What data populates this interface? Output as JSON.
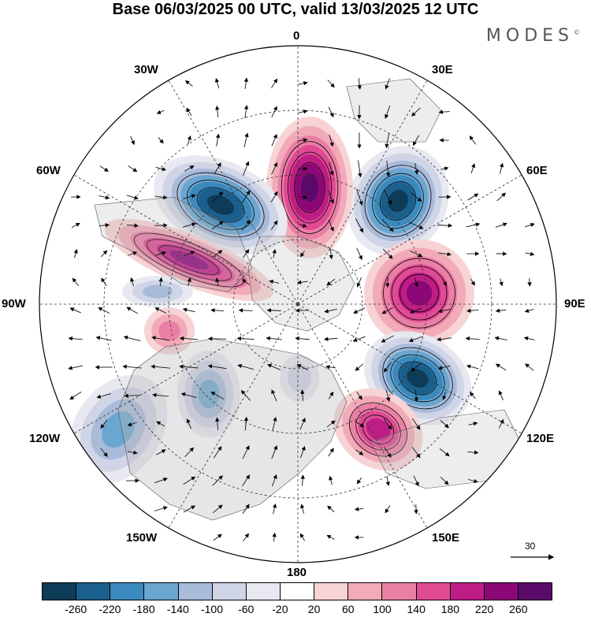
{
  "title": "Base 06/03/2025 00 UTC, valid 13/03/2025 12 UTC",
  "brand": "MODES",
  "brand_mark": "©",
  "longitude_labels": {
    "north": "0",
    "ne": "30E",
    "ene": "60E",
    "east": "90E",
    "ese": "120E",
    "se": "150E",
    "south": "180",
    "sw": "150W",
    "wsw": "120W",
    "west": "90W",
    "wnw": "60W",
    "nw": "30W"
  },
  "vector_key": {
    "label": "30"
  },
  "colorbar": {
    "colors": [
      "#0d3b58",
      "#1b5f8d",
      "#3b89bd",
      "#6aa6cf",
      "#a8bbd9",
      "#cfd5e6",
      "#e8e8f1",
      "#ffffff",
      "#f7d3d6",
      "#f2aab8",
      "#ea7fa5",
      "#df4a93",
      "#bf1d86",
      "#8c0877",
      "#5a0a68"
    ],
    "tick_labels": [
      "-260",
      "-220",
      "-180",
      "-140",
      "-100",
      "-60",
      "-20",
      "20",
      "60",
      "100",
      "140",
      "180",
      "220",
      "260"
    ]
  },
  "anomaly_centers": [
    {
      "sign": "negative",
      "level": "-260",
      "rx": 0.13,
      "ry": 0.3
    },
    {
      "sign": "positive",
      "level": "260"
    },
    {
      "sign": "negative",
      "level": "-260"
    },
    {
      "sign": "positive",
      "level": "220"
    },
    {
      "sign": "negative",
      "level": "-260"
    },
    {
      "sign": "positive",
      "level": "220"
    },
    {
      "sign": "positive",
      "level": "180"
    },
    {
      "sign": "negative",
      "level": "-140"
    },
    {
      "sign": "negative",
      "level": "-140"
    },
    {
      "sign": "positive",
      "level": "100"
    },
    {
      "sign": "negative",
      "level": "-100"
    },
    {
      "sign": "negative",
      "level": "-60"
    }
  ]
}
